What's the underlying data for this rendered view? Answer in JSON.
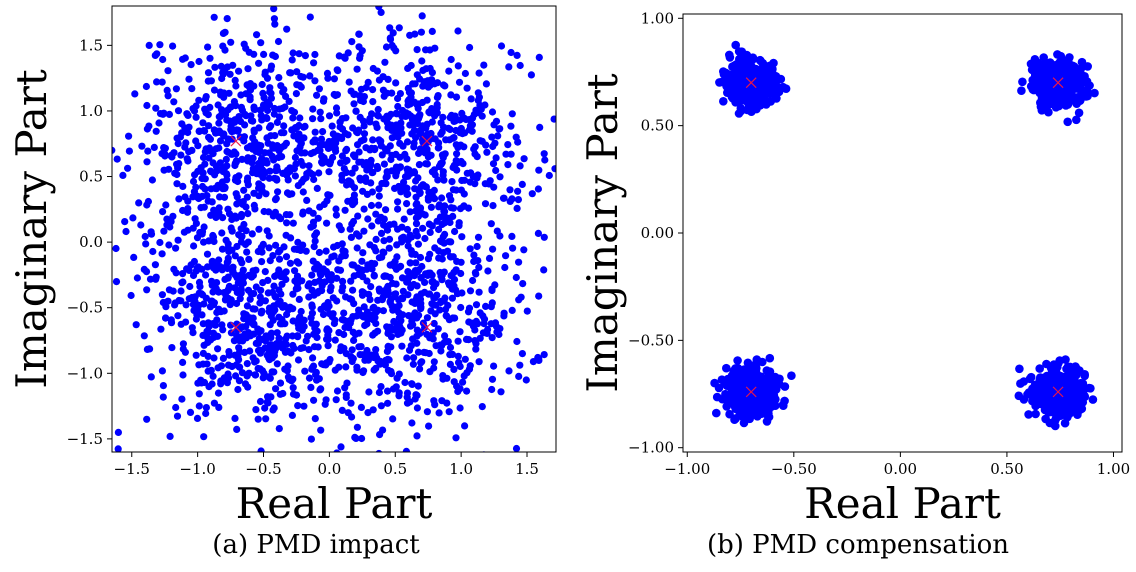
{
  "chart_data": [
    {
      "type": "scatter",
      "panel": "a",
      "caption": "(a) PMD impact",
      "xlabel": "Real Part",
      "ylabel": "Imaginary Part",
      "xlim": [
        -1.65,
        1.72
      ],
      "ylim": [
        -1.6,
        1.8
      ],
      "xticks": [
        "−1.5",
        "−1.0",
        "−0.5",
        "0.0",
        "0.5",
        "1.0",
        "1.5"
      ],
      "xtick_values": [
        -1.5,
        -1.0,
        -0.5,
        0.0,
        0.5,
        1.0,
        1.5
      ],
      "yticks": [
        "−1.5",
        "−1.0",
        "−0.5",
        "0.0",
        "0.5",
        "1.0",
        "1.5"
      ],
      "ytick_values": [
        -1.5,
        -1.0,
        -0.5,
        0.0,
        0.5,
        1.0,
        1.5
      ],
      "grid": false,
      "series": [
        {
          "role": "received-symbols",
          "color": "#0000ff",
          "marker": "circle",
          "count": 2400,
          "spread": [
            0.42,
            0.42
          ],
          "centers": [
            [
              -0.65,
              0.72
            ],
            [
              0.68,
              0.72
            ],
            [
              -0.62,
              -0.55
            ],
            [
              0.6,
              -0.55
            ]
          ]
        },
        {
          "role": "ideal-constellation",
          "color": "#e8174b",
          "marker": "x",
          "points": [
            [
              -0.71,
              0.77
            ],
            [
              0.74,
              0.77
            ],
            [
              -0.71,
              -0.65
            ],
            [
              0.74,
              -0.65
            ]
          ]
        }
      ]
    },
    {
      "type": "scatter",
      "panel": "b",
      "caption": "(b) PMD compensation",
      "xlabel": "Real Part",
      "ylabel": "Imaginary Part",
      "xlim": [
        -1.02,
        1.04
      ],
      "ylim": [
        -1.02,
        1.02
      ],
      "xticks": [
        "−1.00",
        "−0.50",
        "0.00",
        "0.50",
        "1.00"
      ],
      "xtick_values": [
        -1.0,
        -0.5,
        0.0,
        0.5,
        1.0
      ],
      "yticks": [
        "−1.00",
        "−0.50",
        "0.00",
        "0.50",
        "1.00"
      ],
      "ytick_values": [
        -1.0,
        -0.5,
        0.0,
        0.5,
        1.0
      ],
      "grid": false,
      "series": [
        {
          "role": "received-symbols",
          "color": "#0000ff",
          "marker": "circle",
          "count": 1400,
          "spread": [
            0.06,
            0.055
          ],
          "centers": [
            [
              -0.7,
              0.7
            ],
            [
              0.74,
              0.7
            ],
            [
              -0.7,
              -0.74
            ],
            [
              0.74,
              -0.74
            ]
          ]
        },
        {
          "role": "ideal-constellation",
          "color": "#e8174b",
          "marker": "x",
          "points": [
            [
              -0.7,
              0.7
            ],
            [
              0.74,
              0.7
            ],
            [
              -0.7,
              -0.74
            ],
            [
              0.74,
              -0.74
            ]
          ]
        }
      ]
    }
  ]
}
